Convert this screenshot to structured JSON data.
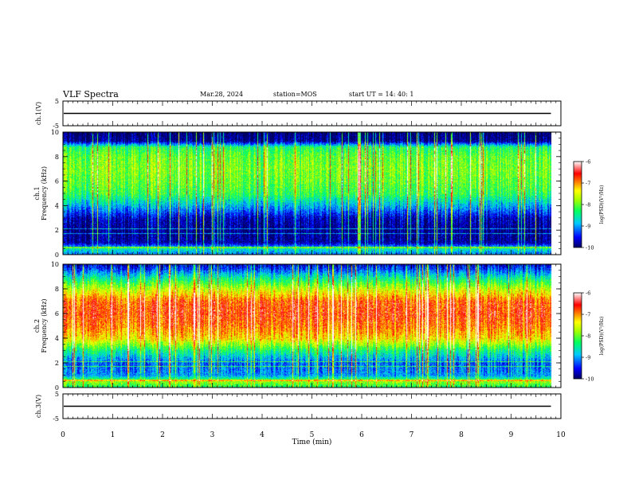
{
  "header": {
    "title": "VLF Spectra",
    "date": "Mar.28, 2024",
    "station": "station=MOS",
    "start": "start  UT  =   14: 40: 1"
  },
  "chart_data": [
    {
      "type": "line",
      "panel": "ch1-waveform",
      "ylabel": "ch.1(V)",
      "ylim": [
        -5,
        5
      ],
      "yticks": [
        "5",
        "-5"
      ],
      "xlim": [
        0,
        10
      ],
      "series": [
        {
          "values_description_level": 0
        }
      ]
    },
    {
      "type": "heatmap",
      "panel": "ch1-spectrogram",
      "ylabel": "ch.1\nFrequency (kHz)",
      "ylabel_lines": [
        "ch.1",
        "Frequency (kHz)"
      ],
      "ylim": [
        0,
        10
      ],
      "yticks": [
        "0",
        "2",
        "4",
        "6",
        "8",
        "10"
      ],
      "xlim": [
        0,
        10
      ],
      "data_end_min": 9.8,
      "colorbar": {
        "label": "log(PSD)(V²/Hz)",
        "ticks": [
          "-6",
          "-7",
          "-8",
          "-9",
          "-10"
        ],
        "range": [
          -10,
          -6
        ]
      },
      "profile": [
        {
          "f": 0.0,
          "v": -9.2
        },
        {
          "f": 0.5,
          "v": -8.6
        },
        {
          "f": 1.0,
          "v": -9.8
        },
        {
          "f": 2.0,
          "v": -9.9
        },
        {
          "f": 3.0,
          "v": -9.7
        },
        {
          "f": 4.0,
          "v": -8.9
        },
        {
          "f": 5.0,
          "v": -8.2
        },
        {
          "f": 6.0,
          "v": -8.0
        },
        {
          "f": 7.0,
          "v": -7.9
        },
        {
          "f": 8.0,
          "v": -8.0
        },
        {
          "f": 8.8,
          "v": -8.3
        },
        {
          "f": 9.3,
          "v": -9.9
        },
        {
          "f": 10.0,
          "v": -10.0
        }
      ]
    },
    {
      "type": "heatmap",
      "panel": "ch2-spectrogram",
      "ylabel": "ch.2\nFrequency (kHz)",
      "ylabel_lines": [
        "ch.2",
        "Frequency (kHz)"
      ],
      "ylim": [
        0,
        10
      ],
      "yticks": [
        "0",
        "2",
        "4",
        "6",
        "8",
        "10"
      ],
      "xlim": [
        0,
        10
      ],
      "data_end_min": 9.8,
      "colorbar": {
        "label": "log(PSD)(V²/Hz)",
        "ticks": [
          "-6",
          "-7",
          "-8",
          "-9",
          "-10"
        ],
        "range": [
          -10,
          -6
        ]
      },
      "profile": [
        {
          "f": 0.0,
          "v": -8.4
        },
        {
          "f": 0.5,
          "v": -7.8
        },
        {
          "f": 1.0,
          "v": -9.0
        },
        {
          "f": 2.0,
          "v": -9.2
        },
        {
          "f": 3.0,
          "v": -8.4
        },
        {
          "f": 4.0,
          "v": -7.3
        },
        {
          "f": 5.0,
          "v": -6.9
        },
        {
          "f": 6.0,
          "v": -6.7
        },
        {
          "f": 7.0,
          "v": -6.8
        },
        {
          "f": 8.0,
          "v": -7.6
        },
        {
          "f": 9.0,
          "v": -8.6
        },
        {
          "f": 9.6,
          "v": -9.3
        },
        {
          "f": 10.0,
          "v": -9.6
        }
      ]
    },
    {
      "type": "line",
      "panel": "ch3-waveform",
      "ylabel": "ch.3(V)",
      "ylim": [
        -5,
        5
      ],
      "yticks": [
        "5",
        "-5"
      ],
      "xlim": [
        0,
        10
      ],
      "series": [
        {
          "values_description_level": 0
        }
      ]
    }
  ],
  "xaxis": {
    "label": "Time (min)",
    "ticks": [
      "0",
      "1",
      "2",
      "3",
      "4",
      "5",
      "6",
      "7",
      "8",
      "9",
      "10"
    ]
  }
}
